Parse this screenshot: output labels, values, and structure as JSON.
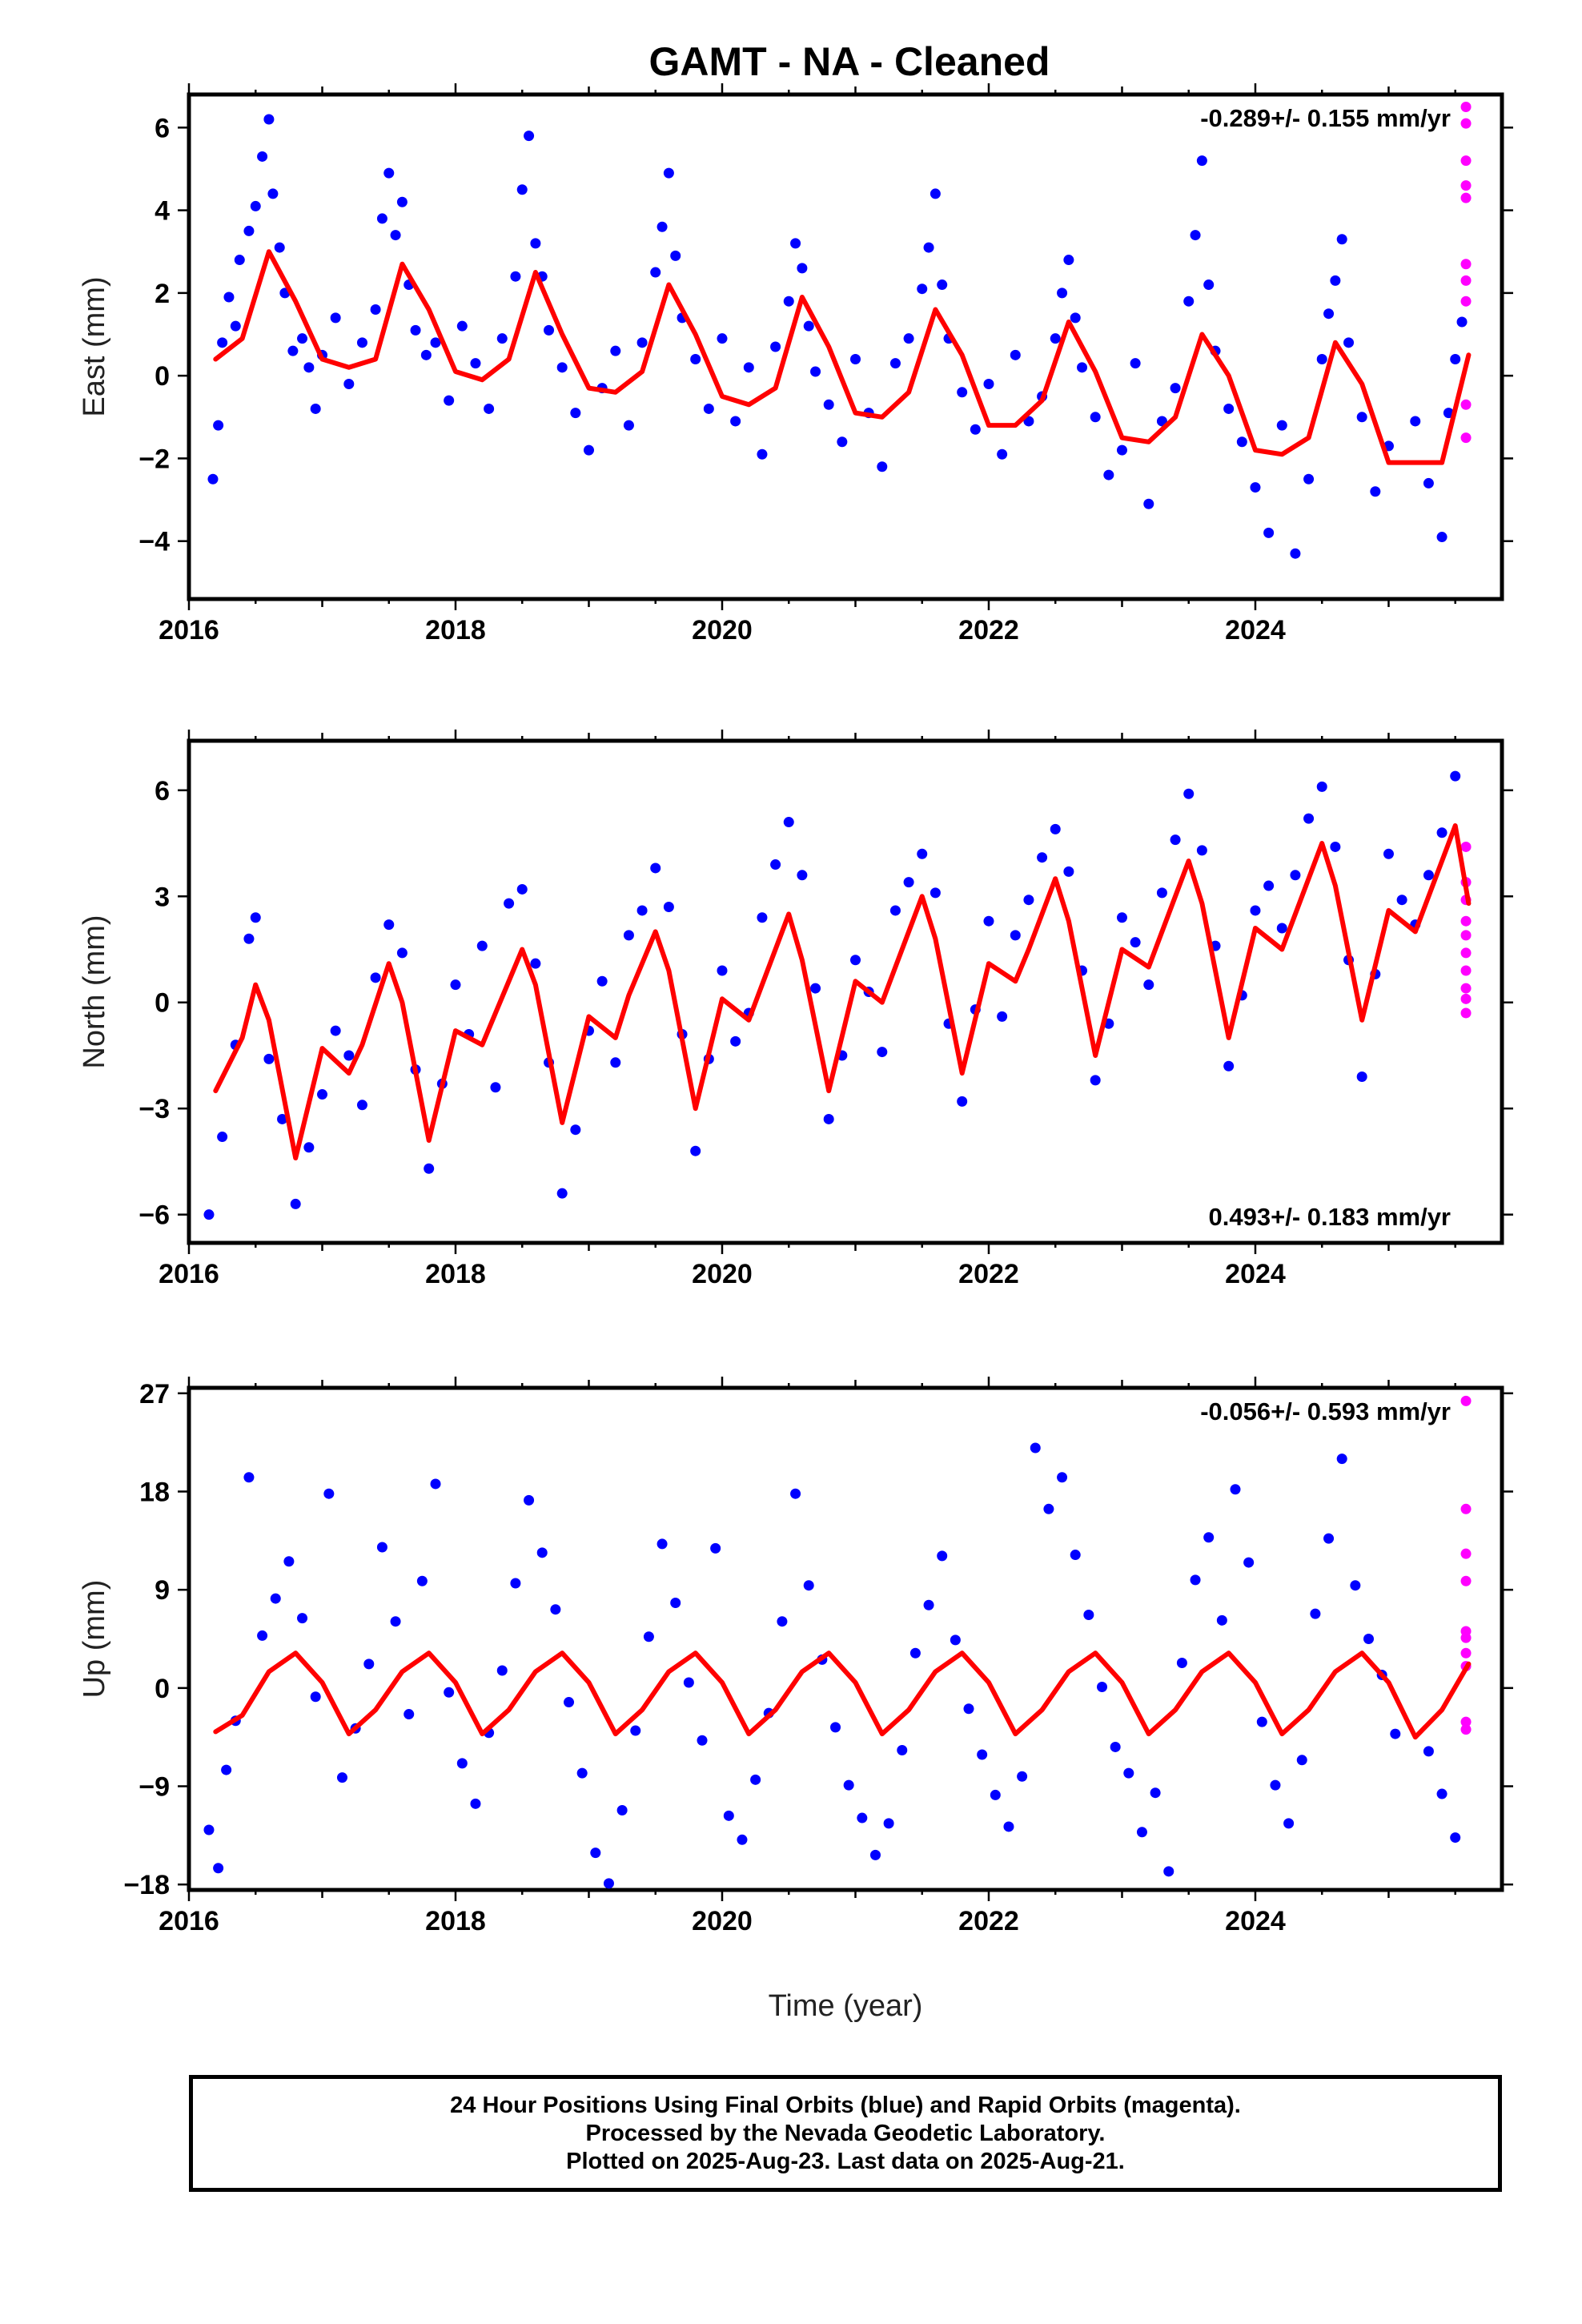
{
  "title": "GAMT  - NA - Cleaned",
  "xlabel": "Time (year)",
  "footer": {
    "line1": "24 Hour Positions Using Final Orbits (blue) and Rapid Orbits (magenta).",
    "line2": "Processed by the Nevada Geodetic Laboratory.",
    "line3": "Plotted on 2025-Aug-23. Last data on 2025-Aug-21."
  },
  "colors": {
    "final": "#0000ff",
    "rapid": "#ff00ff",
    "fit": "#ff0000",
    "frame": "#000000"
  },
  "chart_data": [
    {
      "type": "scatter",
      "ylabel": "East (mm)",
      "rate_label": "-0.289+/- 0.155 mm/yr",
      "rate_position": "top-right",
      "xlim": [
        2016.0,
        2025.85
      ],
      "ylim": [
        -5.4,
        6.8
      ],
      "xticks": [
        "2016",
        "2018",
        "2020",
        "2022",
        "2024"
      ],
      "xtick_values": [
        2016,
        2018,
        2020,
        2022,
        2024
      ],
      "yticks": [
        "−4",
        "−2",
        "0",
        "2",
        "4",
        "6"
      ],
      "ytick_values": [
        -4,
        -2,
        0,
        2,
        4,
        6
      ],
      "fit": {
        "name": "",
        "x": [
          2016.2,
          2016.4,
          2016.6,
          2016.8,
          2017.0,
          2017.2,
          2017.4,
          2017.6,
          2017.8,
          2018.0,
          2018.2,
          2018.4,
          2018.6,
          2018.8,
          2019.0,
          2019.2,
          2019.4,
          2019.6,
          2019.8,
          2020.0,
          2020.2,
          2020.4,
          2020.6,
          2020.8,
          2021.0,
          2021.2,
          2021.4,
          2021.6,
          2021.8,
          2022.0,
          2022.2,
          2022.4,
          2022.6,
          2022.8,
          2023.0,
          2023.2,
          2023.4,
          2023.6,
          2023.8,
          2024.0,
          2024.2,
          2024.4,
          2024.6,
          2024.8,
          2025.0,
          2025.2,
          2025.4,
          2025.6
        ],
        "y": [
          0.4,
          0.9,
          3.0,
          1.8,
          0.4,
          0.2,
          0.4,
          2.7,
          1.6,
          0.1,
          -0.1,
          0.4,
          2.5,
          1.0,
          -0.3,
          -0.4,
          0.1,
          2.2,
          1.0,
          -0.5,
          -0.7,
          -0.3,
          1.9,
          0.7,
          -0.9,
          -1.0,
          -0.4,
          1.6,
          0.5,
          -1.2,
          -1.2,
          -0.6,
          1.3,
          0.1,
          -1.5,
          -1.6,
          -1.0,
          1.0,
          0.0,
          -1.8,
          -1.9,
          -1.5,
          0.8,
          -0.2,
          -2.1,
          -2.1,
          -2.1,
          0.5
        ]
      },
      "final_points": {
        "x": [
          2016.18,
          2016.22,
          2016.25,
          2016.3,
          2016.35,
          2016.38,
          2016.45,
          2016.5,
          2016.55,
          2016.6,
          2016.63,
          2016.68,
          2016.72,
          2016.78,
          2016.85,
          2016.9,
          2016.95,
          2017.0,
          2017.1,
          2017.2,
          2017.3,
          2017.4,
          2017.45,
          2017.5,
          2017.55,
          2017.6,
          2017.65,
          2017.7,
          2017.78,
          2017.85,
          2017.95,
          2018.05,
          2018.15,
          2018.25,
          2018.35,
          2018.45,
          2018.5,
          2018.55,
          2018.6,
          2018.65,
          2018.7,
          2018.8,
          2018.9,
          2019.0,
          2019.1,
          2019.2,
          2019.3,
          2019.4,
          2019.5,
          2019.55,
          2019.6,
          2019.65,
          2019.7,
          2019.8,
          2019.9,
          2020.0,
          2020.1,
          2020.2,
          2020.3,
          2020.4,
          2020.5,
          2020.55,
          2020.6,
          2020.65,
          2020.7,
          2020.8,
          2020.9,
          2021.0,
          2021.1,
          2021.2,
          2021.3,
          2021.4,
          2021.5,
          2021.55,
          2021.6,
          2021.65,
          2021.7,
          2021.8,
          2021.9,
          2022.0,
          2022.1,
          2022.2,
          2022.3,
          2022.4,
          2022.5,
          2022.55,
          2022.6,
          2022.65,
          2022.7,
          2022.8,
          2022.9,
          2023.0,
          2023.1,
          2023.2,
          2023.3,
          2023.4,
          2023.5,
          2023.55,
          2023.6,
          2023.65,
          2023.7,
          2023.8,
          2023.9,
          2024.0,
          2024.1,
          2024.2,
          2024.3,
          2024.4,
          2024.5,
          2024.55,
          2024.6,
          2024.65,
          2024.7,
          2024.8,
          2024.9,
          2025.0,
          2025.2,
          2025.3,
          2025.4,
          2025.45,
          2025.5,
          2025.55
        ],
        "y": [
          -2.5,
          -1.2,
          0.8,
          1.9,
          1.2,
          2.8,
          3.5,
          4.1,
          5.3,
          6.2,
          4.4,
          3.1,
          2.0,
          0.6,
          0.9,
          0.2,
          -0.8,
          0.5,
          1.4,
          -0.2,
          0.8,
          1.6,
          3.8,
          4.9,
          3.4,
          4.2,
          2.2,
          1.1,
          0.5,
          0.8,
          -0.6,
          1.2,
          0.3,
          -0.8,
          0.9,
          2.4,
          4.5,
          5.8,
          3.2,
          2.4,
          1.1,
          0.2,
          -0.9,
          -1.8,
          -0.3,
          0.6,
          -1.2,
          0.8,
          2.5,
          3.6,
          4.9,
          2.9,
          1.4,
          0.4,
          -0.8,
          0.9,
          -1.1,
          0.2,
          -1.9,
          0.7,
          1.8,
          3.2,
          2.6,
          1.2,
          0.1,
          -0.7,
          -1.6,
          0.4,
          -0.9,
          -2.2,
          0.3,
          0.9,
          2.1,
          3.1,
          4.4,
          2.2,
          0.9,
          -0.4,
          -1.3,
          -0.2,
          -1.9,
          0.5,
          -1.1,
          -0.5,
          0.9,
          2.0,
          2.8,
          1.4,
          0.2,
          -1.0,
          -2.4,
          -1.8,
          0.3,
          -3.1,
          -1.1,
          -0.3,
          1.8,
          3.4,
          5.2,
          2.2,
          0.6,
          -0.8,
          -1.6,
          -2.7,
          -3.8,
          -1.2,
          -4.3,
          -2.5,
          0.4,
          1.5,
          2.3,
          3.3,
          0.8,
          -1.0,
          -2.8,
          -1.7,
          -1.1,
          -2.6,
          -3.9,
          -0.9,
          0.4,
          1.3
        ]
      },
      "rapid_points": {
        "x": [
          2025.58,
          2025.58,
          2025.58,
          2025.58,
          2025.58,
          2025.58,
          2025.58,
          2025.58,
          2025.58,
          2025.58
        ],
        "y": [
          6.5,
          6.1,
          5.2,
          4.6,
          4.3,
          2.7,
          2.3,
          1.8,
          -0.7,
          -1.5
        ]
      }
    },
    {
      "type": "scatter",
      "ylabel": "North (mm)",
      "rate_label": "0.493+/- 0.183 mm/yr",
      "rate_position": "bottom-right",
      "xlim": [
        2016.0,
        2025.85
      ],
      "ylim": [
        -6.8,
        7.4
      ],
      "xticks": [
        "2016",
        "2018",
        "2020",
        "2022",
        "2024"
      ],
      "xtick_values": [
        2016,
        2018,
        2020,
        2022,
        2024
      ],
      "yticks": [
        "−6",
        "−3",
        "0",
        "3",
        "6"
      ],
      "ytick_values": [
        -6,
        -3,
        0,
        3,
        6
      ],
      "fit": {
        "name": "",
        "x": [
          2016.2,
          2016.4,
          2016.5,
          2016.6,
          2016.8,
          2017.0,
          2017.2,
          2017.3,
          2017.5,
          2017.6,
          2017.8,
          2018.0,
          2018.2,
          2018.3,
          2018.5,
          2018.6,
          2018.8,
          2019.0,
          2019.2,
          2019.3,
          2019.5,
          2019.6,
          2019.8,
          2020.0,
          2020.2,
          2020.3,
          2020.5,
          2020.6,
          2020.8,
          2021.0,
          2021.2,
          2021.3,
          2021.5,
          2021.6,
          2021.8,
          2022.0,
          2022.2,
          2022.3,
          2022.5,
          2022.6,
          2022.8,
          2023.0,
          2023.2,
          2023.3,
          2023.5,
          2023.6,
          2023.8,
          2024.0,
          2024.2,
          2024.3,
          2024.5,
          2024.6,
          2024.8,
          2025.0,
          2025.2,
          2025.3,
          2025.5,
          2025.6
        ],
        "y": [
          -2.5,
          -1.0,
          0.5,
          -0.5,
          -4.4,
          -1.3,
          -2.0,
          -1.2,
          1.1,
          0.0,
          -3.9,
          -0.8,
          -1.2,
          -0.3,
          1.5,
          0.5,
          -3.4,
          -0.4,
          -1.0,
          0.2,
          2.0,
          0.9,
          -3.0,
          0.1,
          -0.5,
          0.5,
          2.5,
          1.2,
          -2.5,
          0.6,
          0.0,
          1.0,
          3.0,
          1.8,
          -2.0,
          1.1,
          0.6,
          1.5,
          3.5,
          2.3,
          -1.5,
          1.5,
          1.0,
          2.0,
          4.0,
          2.8,
          -1.0,
          2.1,
          1.5,
          2.5,
          4.5,
          3.3,
          -0.5,
          2.6,
          2.0,
          3.0,
          5.0,
          2.8
        ]
      },
      "final_points": {
        "x": [
          2016.15,
          2016.25,
          2016.35,
          2016.45,
          2016.5,
          2016.6,
          2016.7,
          2016.8,
          2016.9,
          2017.0,
          2017.1,
          2017.2,
          2017.3,
          2017.4,
          2017.5,
          2017.6,
          2017.7,
          2017.8,
          2017.9,
          2018.0,
          2018.1,
          2018.2,
          2018.3,
          2018.4,
          2018.5,
          2018.6,
          2018.7,
          2018.8,
          2018.9,
          2019.0,
          2019.1,
          2019.2,
          2019.3,
          2019.4,
          2019.5,
          2019.6,
          2019.7,
          2019.8,
          2019.9,
          2020.0,
          2020.1,
          2020.2,
          2020.3,
          2020.4,
          2020.5,
          2020.6,
          2020.7,
          2020.8,
          2020.9,
          2021.0,
          2021.1,
          2021.2,
          2021.3,
          2021.4,
          2021.5,
          2021.6,
          2021.7,
          2021.8,
          2021.9,
          2022.0,
          2022.1,
          2022.2,
          2022.3,
          2022.4,
          2022.5,
          2022.6,
          2022.7,
          2022.8,
          2022.9,
          2023.0,
          2023.1,
          2023.2,
          2023.3,
          2023.4,
          2023.5,
          2023.6,
          2023.7,
          2023.8,
          2023.9,
          2024.0,
          2024.1,
          2024.2,
          2024.3,
          2024.4,
          2024.5,
          2024.6,
          2024.7,
          2024.8,
          2024.9,
          2025.0,
          2025.1,
          2025.2,
          2025.3,
          2025.4,
          2025.5
        ],
        "y": [
          -6.0,
          -3.8,
          -1.2,
          1.8,
          2.4,
          -1.6,
          -3.3,
          -5.7,
          -4.1,
          -2.6,
          -0.8,
          -1.5,
          -2.9,
          0.7,
          2.2,
          1.4,
          -1.9,
          -4.7,
          -2.3,
          0.5,
          -0.9,
          1.6,
          -2.4,
          2.8,
          3.2,
          1.1,
          -1.7,
          -5.4,
          -3.6,
          -0.8,
          0.6,
          -1.7,
          1.9,
          2.6,
          3.8,
          2.7,
          -0.9,
          -4.2,
          -1.6,
          0.9,
          -1.1,
          -0.3,
          2.4,
          3.9,
          5.1,
          3.6,
          0.4,
          -3.3,
          -1.5,
          1.2,
          0.3,
          -1.4,
          2.6,
          3.4,
          4.2,
          3.1,
          -0.6,
          -2.8,
          -0.2,
          2.3,
          -0.4,
          1.9,
          2.9,
          4.1,
          4.9,
          3.7,
          0.9,
          -2.2,
          -0.6,
          2.4,
          1.7,
          0.5,
          3.1,
          4.6,
          5.9,
          4.3,
          1.6,
          -1.8,
          0.2,
          2.6,
          3.3,
          2.1,
          3.6,
          5.2,
          6.1,
          4.4,
          1.2,
          -2.1,
          0.8,
          4.2,
          2.9,
          2.2,
          3.6,
          4.8,
          6.4
        ]
      },
      "rapid_points": {
        "x": [
          2025.58,
          2025.58,
          2025.58,
          2025.58,
          2025.58,
          2025.58,
          2025.58,
          2025.58,
          2025.58,
          2025.58
        ],
        "y": [
          4.4,
          3.4,
          2.9,
          2.3,
          1.9,
          1.4,
          0.9,
          0.4,
          0.1,
          -0.3
        ]
      }
    },
    {
      "type": "scatter",
      "ylabel": "Up (mm)",
      "rate_label": "-0.056+/- 0.593 mm/yr",
      "rate_position": "top-right",
      "xlim": [
        2016.0,
        2025.85
      ],
      "ylim": [
        -18.5,
        27.5
      ],
      "xticks": [
        "2016",
        "2018",
        "2020",
        "2022",
        "2024"
      ],
      "xtick_values": [
        2016,
        2018,
        2020,
        2022,
        2024
      ],
      "yticks": [
        "−18",
        "−9",
        "0",
        "9",
        "18",
        "27"
      ],
      "ytick_values": [
        -18,
        -9,
        0,
        9,
        18,
        27
      ],
      "fit": {
        "name": "",
        "x": [
          2016.2,
          2016.4,
          2016.6,
          2016.8,
          2017.0,
          2017.2,
          2017.4,
          2017.6,
          2017.8,
          2018.0,
          2018.2,
          2018.4,
          2018.6,
          2018.8,
          2019.0,
          2019.2,
          2019.4,
          2019.6,
          2019.8,
          2020.0,
          2020.2,
          2020.4,
          2020.6,
          2020.8,
          2021.0,
          2021.2,
          2021.4,
          2021.6,
          2021.8,
          2022.0,
          2022.2,
          2022.4,
          2022.6,
          2022.8,
          2023.0,
          2023.2,
          2023.4,
          2023.6,
          2023.8,
          2024.0,
          2024.2,
          2024.4,
          2024.6,
          2024.8,
          2025.0,
          2025.2,
          2025.4,
          2025.6
        ],
        "y": [
          -4.0,
          -2.5,
          1.5,
          3.2,
          0.5,
          -4.2,
          -2.0,
          1.5,
          3.2,
          0.5,
          -4.2,
          -2.0,
          1.5,
          3.2,
          0.5,
          -4.2,
          -2.0,
          1.5,
          3.2,
          0.5,
          -4.2,
          -2.0,
          1.5,
          3.2,
          0.5,
          -4.2,
          -2.0,
          1.5,
          3.2,
          0.5,
          -4.2,
          -2.0,
          1.5,
          3.2,
          0.5,
          -4.2,
          -2.0,
          1.5,
          3.2,
          0.5,
          -4.2,
          -2.0,
          1.5,
          3.2,
          0.5,
          -4.5,
          -2.0,
          2.2
        ]
      },
      "final_points": {
        "x": [
          2016.15,
          2016.22,
          2016.28,
          2016.35,
          2016.45,
          2016.55,
          2016.65,
          2016.75,
          2016.85,
          2016.95,
          2017.05,
          2017.15,
          2017.25,
          2017.35,
          2017.45,
          2017.55,
          2017.65,
          2017.75,
          2017.85,
          2017.95,
          2018.05,
          2018.15,
          2018.25,
          2018.35,
          2018.45,
          2018.55,
          2018.65,
          2018.75,
          2018.85,
          2018.95,
          2019.05,
          2019.15,
          2019.25,
          2019.35,
          2019.45,
          2019.55,
          2019.65,
          2019.75,
          2019.85,
          2019.95,
          2020.05,
          2020.15,
          2020.25,
          2020.35,
          2020.45,
          2020.55,
          2020.65,
          2020.75,
          2020.85,
          2020.95,
          2021.05,
          2021.15,
          2021.25,
          2021.35,
          2021.45,
          2021.55,
          2021.65,
          2021.75,
          2021.85,
          2021.95,
          2022.05,
          2022.15,
          2022.25,
          2022.35,
          2022.45,
          2022.55,
          2022.65,
          2022.75,
          2022.85,
          2022.95,
          2023.05,
          2023.15,
          2023.25,
          2023.35,
          2023.45,
          2023.55,
          2023.65,
          2023.75,
          2023.85,
          2023.95,
          2024.05,
          2024.15,
          2024.25,
          2024.35,
          2024.45,
          2024.55,
          2024.65,
          2024.75,
          2024.85,
          2024.95,
          2025.05,
          2025.3,
          2025.4,
          2025.5
        ],
        "y": [
          -13.0,
          -16.5,
          -7.5,
          -3.0,
          19.3,
          4.8,
          8.2,
          11.6,
          6.4,
          -0.8,
          17.8,
          -8.2,
          -3.7,
          2.2,
          12.9,
          6.1,
          -2.4,
          9.8,
          18.7,
          -0.4,
          -6.9,
          -10.6,
          -4.1,
          1.6,
          9.6,
          17.2,
          12.4,
          7.2,
          -1.3,
          -7.8,
          -15.1,
          -17.9,
          -11.2,
          -3.9,
          4.7,
          13.2,
          7.8,
          0.5,
          -4.8,
          12.8,
          -11.7,
          -13.9,
          -8.4,
          -2.3,
          6.1,
          17.8,
          9.4,
          2.6,
          -3.6,
          -8.9,
          -11.9,
          -15.3,
          -12.4,
          -5.7,
          3.2,
          7.6,
          12.1,
          4.4,
          -1.9,
          -6.1,
          -9.8,
          -12.7,
          -8.1,
          22.0,
          16.4,
          19.3,
          12.2,
          6.7,
          0.1,
          -5.4,
          -7.8,
          -13.2,
          -9.6,
          -16.8,
          2.3,
          9.9,
          13.8,
          6.2,
          18.2,
          11.5,
          -3.1,
          -8.9,
          -12.4,
          -6.6,
          6.8,
          13.7,
          21.0,
          9.4,
          4.5,
          1.2,
          -4.2,
          -5.8,
          -9.7,
          -13.7
        ]
      },
      "rapid_points": {
        "x": [
          2025.58,
          2025.58,
          2025.58,
          2025.58,
          2025.58,
          2025.58,
          2025.58,
          2025.58,
          2025.58,
          2025.58
        ],
        "y": [
          26.3,
          16.4,
          12.3,
          9.8,
          5.2,
          4.6,
          3.2,
          2.0,
          -3.1,
          -3.8
        ]
      }
    }
  ]
}
